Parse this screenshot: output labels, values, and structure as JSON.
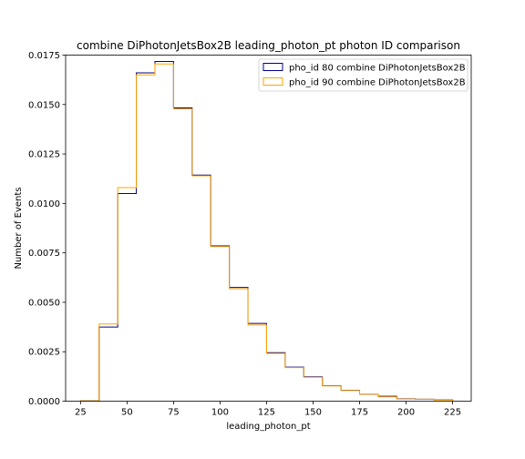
{
  "chart_data": {
    "type": "histogram-step",
    "title": "combine DiPhotonJetsBox2B leading_photon_pt photon ID comparison",
    "xlabel": "leading_photon_pt",
    "ylabel": "Number of Events",
    "xlim": [
      17,
      235
    ],
    "ylim": [
      0,
      0.0175
    ],
    "xticks": [
      25,
      50,
      75,
      100,
      125,
      150,
      175,
      200,
      225
    ],
    "xtick_labels": [
      "25",
      "50",
      "75",
      "100",
      "125",
      "150",
      "175",
      "200",
      "225"
    ],
    "yticks": [
      0,
      0.0025,
      0.005,
      0.0075,
      0.01,
      0.0125,
      0.015,
      0.0175
    ],
    "ytick_labels": [
      "0.0000",
      "0.0025",
      "0.0050",
      "0.0075",
      "0.0100",
      "0.0125",
      "0.0150",
      "0.0175"
    ],
    "bin_edges": [
      25,
      35,
      45,
      55,
      65,
      75,
      85,
      95,
      105,
      115,
      125,
      135,
      145,
      155,
      165,
      175,
      185,
      195,
      205,
      215,
      225
    ],
    "legend_position": "upper-right",
    "grid": false,
    "series": [
      {
        "name": "pho_id 80 combine DiPhotonJetsBox2B",
        "color": "#00008b",
        "values": [
          2e-05,
          0.00375,
          0.0105,
          0.0166,
          0.01718,
          0.01483,
          0.01143,
          0.00785,
          0.00575,
          0.00393,
          0.00245,
          0.00172,
          0.00123,
          0.00078,
          0.00055,
          0.00035,
          0.00025,
          0.00012,
          0.0001,
          7e-05
        ]
      },
      {
        "name": "pho_id 90 combine DiPhotonJetsBox2B",
        "color": "#ffa500",
        "values": [
          2e-05,
          0.0039,
          0.0108,
          0.0165,
          0.01705,
          0.01478,
          0.0114,
          0.00782,
          0.00568,
          0.00385,
          0.00242,
          0.0017,
          0.00121,
          0.00077,
          0.00054,
          0.00035,
          0.00022,
          0.00011,
          0.0001,
          6e-05
        ]
      }
    ]
  }
}
